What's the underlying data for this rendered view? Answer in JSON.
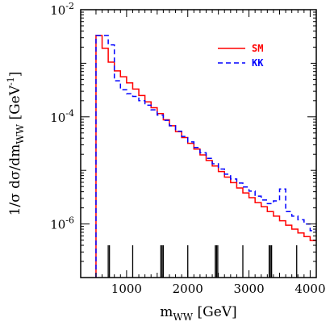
{
  "chart_data": {
    "type": "line",
    "step": true,
    "xlabel_main": "m",
    "xlabel_sub": "WW",
    "xlabel_unit": " [GeV]",
    "ylabel_main": "1/σ dσ/dm",
    "ylabel_sub": "WW",
    "ylabel_unit": " [GeV",
    "ylabel_exp": "-1",
    "ylabel_close": "]",
    "xlim": [
      250,
      4100
    ],
    "ylim": [
      1e-07,
      0.01
    ],
    "yscale": "log",
    "x_ticks": [
      1000,
      2000,
      3000,
      4000
    ],
    "x_tick_labels": [
      "1000",
      "2000",
      "3000",
      "4000"
    ],
    "y_ticks": [
      {
        "value": 0.01,
        "base": "10",
        "exp": "-2"
      },
      {
        "value": 0.0001,
        "base": "10",
        "exp": "-4"
      },
      {
        "value": 1e-06,
        "base": "10",
        "exp": "-6"
      }
    ],
    "legend_position": "top-right",
    "rug_x": [
      700,
      720,
      1100,
      1560,
      1580,
      1600,
      2000,
      2450,
      2470,
      2490,
      2900,
      3330,
      3350,
      3370,
      3780
    ],
    "bin_edges": [
      500,
      600,
      700,
      800,
      900,
      1000,
      1100,
      1200,
      1300,
      1400,
      1500,
      1600,
      1700,
      1800,
      1900,
      2000,
      2100,
      2200,
      2300,
      2400,
      2500,
      2600,
      2700,
      2800,
      2900,
      3000,
      3100,
      3200,
      3300,
      3400,
      3500,
      3600,
      3700,
      3800,
      3900,
      4000,
      4100
    ],
    "series": [
      {
        "name": "SM",
        "color": "#ff0000",
        "dash": "solid",
        "values": [
          0.0033,
          0.0019,
          0.00105,
          0.00072,
          0.00056,
          0.00043,
          0.00033,
          0.00025,
          0.00019,
          0.000148,
          0.000115,
          8.8e-05,
          6.8e-05,
          5.3e-05,
          4.1e-05,
          3.2e-05,
          2.5e-05,
          1.95e-05,
          1.53e-05,
          1.21e-05,
          9.5e-06,
          7.5e-06,
          5.9e-06,
          4.7e-06,
          3.8e-06,
          3.1e-06,
          2.5e-06,
          2.1e-06,
          1.7e-06,
          1.4e-06,
          1.15e-06,
          9.5e-07,
          8e-07,
          6.8e-07,
          5.8e-07,
          4.9e-07
        ]
      },
      {
        "name": "KK",
        "color": "#0000ff",
        "dash": "dashed",
        "values": [
          0.0033,
          0.0033,
          0.0022,
          0.00047,
          0.00032,
          0.00027,
          0.00024,
          0.0002,
          0.000165,
          0.000135,
          0.000108,
          8.6e-05,
          6.8e-05,
          5.4e-05,
          4.3e-05,
          3.4e-05,
          2.68e-05,
          2.13e-05,
          1.68e-05,
          1.33e-05,
          1.06e-05,
          8.5e-06,
          6.9e-06,
          5.8e-06,
          4.9e-06,
          4.1e-06,
          3.3e-06,
          2.8e-06,
          2.4e-06,
          2.7e-06,
          4.5e-06,
          1.7e-06,
          1.4e-06,
          1.2e-06,
          1e-06,
          7.5e-07
        ]
      }
    ]
  }
}
